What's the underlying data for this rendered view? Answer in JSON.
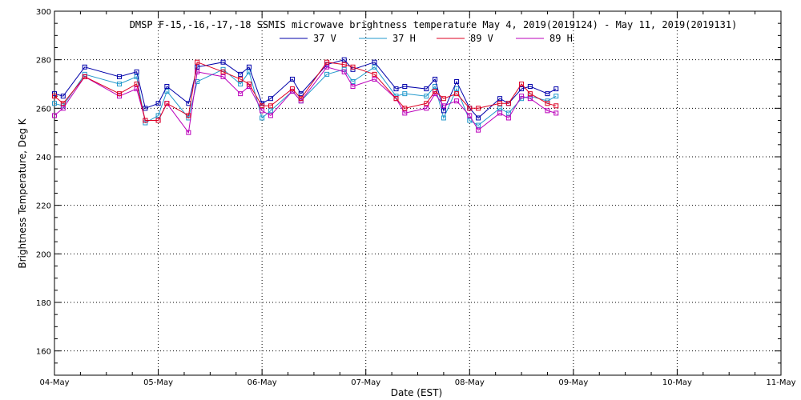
{
  "chart_data": {
    "type": "line",
    "title": "DMSP F-15,-16,-17,-18 SSMIS microwave brightness temperature May  4, 2019(2019124) - May 11, 2019(2019131)",
    "xlabel": "Date (EST)",
    "ylabel": "Brightness Temperature, Deg K",
    "ylim": [
      150,
      300
    ],
    "yticks": [
      "160",
      "180",
      "200",
      "220",
      "240",
      "260",
      "280",
      "300"
    ],
    "xlim": [
      "2019-05-04 00:00",
      "2019-05-11 00:00"
    ],
    "xticks": [
      "04-May",
      "05-May",
      "06-May",
      "07-May",
      "08-May",
      "09-May",
      "10-May",
      "11-May"
    ],
    "grid": true,
    "legend_position": "top",
    "colors": {
      "37 V": "#0000aa",
      "37 H": "#2299cc",
      "89 V": "#dd0022",
      "89 H": "#bb00bb"
    },
    "x": [
      "2019-05-04 00:00",
      "2019-05-04 02:00",
      "2019-05-04 07:00",
      "2019-05-04 15:00",
      "2019-05-04 19:00",
      "2019-05-04 21:00",
      "2019-05-05 00:00",
      "2019-05-05 02:00",
      "2019-05-05 07:00",
      "2019-05-05 09:00",
      "2019-05-05 15:00",
      "2019-05-05 19:00",
      "2019-05-05 21:00",
      "2019-05-06 00:00",
      "2019-05-06 02:00",
      "2019-05-06 07:00",
      "2019-05-06 09:00",
      "2019-05-06 15:00",
      "2019-05-06 19:00",
      "2019-05-06 21:00",
      "2019-05-07 02:00",
      "2019-05-07 07:00",
      "2019-05-07 09:00",
      "2019-05-07 14:00",
      "2019-05-07 16:00",
      "2019-05-07 18:00",
      "2019-05-07 21:00",
      "2019-05-08 00:00",
      "2019-05-08 02:00",
      "2019-05-08 07:00",
      "2019-05-08 09:00",
      "2019-05-08 12:00",
      "2019-05-08 14:00",
      "2019-05-08 18:00",
      "2019-05-08 20:00"
    ],
    "series": [
      {
        "name": "37 V",
        "values": [
          266,
          265,
          277,
          273,
          275,
          260,
          262,
          269,
          262,
          277,
          279,
          274,
          277,
          262,
          264,
          272,
          266,
          278,
          280,
          276,
          279,
          268,
          269,
          268,
          272,
          259,
          271,
          260,
          256,
          264,
          262,
          268,
          269,
          266,
          268
        ]
      },
      {
        "name": "37 H",
        "values": [
          262,
          261,
          274,
          270,
          273,
          254,
          257,
          267,
          256,
          271,
          276,
          270,
          275,
          256,
          259,
          267,
          263,
          274,
          276,
          271,
          277,
          265,
          266,
          265,
          269,
          256,
          268,
          255,
          253,
          260,
          258,
          264,
          265,
          263,
          265
        ]
      },
      {
        "name": "89 V",
        "values": [
          265,
          262,
          273,
          266,
          270,
          255,
          255,
          262,
          257,
          279,
          275,
          272,
          270,
          261,
          261,
          268,
          264,
          279,
          278,
          277,
          274,
          264,
          260,
          262,
          267,
          264,
          266,
          260,
          260,
          262,
          262,
          270,
          266,
          262,
          261
        ]
      },
      {
        "name": "89 H",
        "values": [
          257,
          260,
          273,
          265,
          268,
          255,
          255,
          262,
          250,
          275,
          273,
          266,
          269,
          259,
          257,
          267,
          263,
          277,
          275,
          269,
          272,
          264,
          258,
          260,
          266,
          261,
          263,
          257,
          251,
          258,
          256,
          265,
          264,
          259,
          258
        ]
      }
    ]
  }
}
